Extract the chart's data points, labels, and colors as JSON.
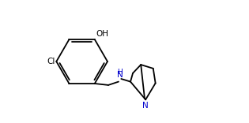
{
  "background_color": "#ffffff",
  "bond_color": "#000000",
  "label_color_black": "#000000",
  "label_color_blue": "#0000cd",
  "label_OH": "OH",
  "label_Cl": "Cl",
  "label_NH": "H\nN",
  "label_N": "N",
  "figsize": [
    3.15,
    1.56
  ],
  "dpi": 100,
  "lw": 1.3
}
